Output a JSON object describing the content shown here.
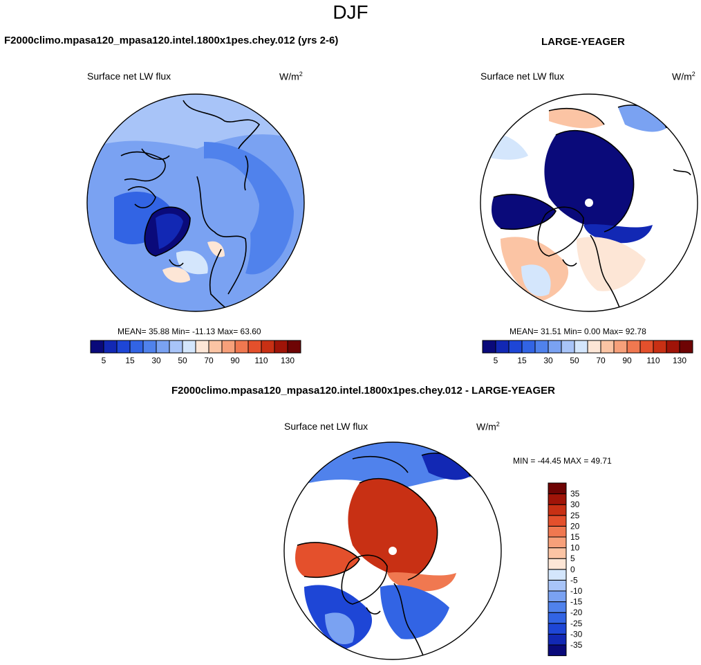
{
  "figure_title": "DJF",
  "panels": [
    {
      "title": "F2000climo.mpasa120_mpasa120.intel.1800x1pes.chey.012 (yrs 2-6)",
      "left_label": "Surface net LW flux",
      "units_base": "W/m",
      "units_exp": "2",
      "stats_text": "MEAN=  35.88  Min= -11.13  Max=  63.60"
    },
    {
      "title": "LARGE-YEAGER",
      "left_label": "Surface net LW flux",
      "units_base": "W/m",
      "units_exp": "2",
      "stats_text": "MEAN=  31.51  Min=   0.00  Max=  92.78"
    },
    {
      "title": "F2000climo.mpasa120_mpasa120.intel.1800x1pes.chey.012 - LARGE-YEAGER",
      "left_label": "Surface net LW flux",
      "units_base": "W/m",
      "units_exp": "2",
      "stats_text": "MIN = -44.45 MAX =  49.71"
    }
  ],
  "chart_data": [
    {
      "type": "heatmap",
      "projection": "north polar stereographic",
      "variable": "Surface net LW flux",
      "units": "W/m2",
      "mean": 35.88,
      "min": -11.13,
      "max": 63.6,
      "colorbar": {
        "orientation": "horizontal",
        "colors": [
          "#0a0a7a",
          "#1228b4",
          "#1e46d6",
          "#3264e4",
          "#5082ec",
          "#7aa2f2",
          "#a8c4f8",
          "#d4e6fc",
          "#fde6d6",
          "#fbc4a4",
          "#f7a07a",
          "#f07850",
          "#e4502c",
          "#c83014",
          "#a01408",
          "#6e0404"
        ],
        "tick_labels": [
          "5",
          "15",
          "30",
          "50",
          "70",
          "90",
          "110",
          "130"
        ],
        "tick_boundary_index": [
          1,
          3,
          5,
          7,
          9,
          11,
          13,
          15
        ]
      }
    },
    {
      "type": "heatmap",
      "projection": "north polar stereographic",
      "variable": "Surface net LW flux",
      "units": "W/m2",
      "mean": 31.51,
      "min": 0.0,
      "max": 92.78,
      "colorbar": {
        "orientation": "horizontal",
        "colors": [
          "#0a0a7a",
          "#1228b4",
          "#1e46d6",
          "#3264e4",
          "#5082ec",
          "#7aa2f2",
          "#a8c4f8",
          "#d4e6fc",
          "#fde6d6",
          "#fbc4a4",
          "#f7a07a",
          "#f07850",
          "#e4502c",
          "#c83014",
          "#a01408",
          "#6e0404"
        ],
        "tick_labels": [
          "5",
          "15",
          "30",
          "50",
          "70",
          "90",
          "110",
          "130"
        ],
        "tick_boundary_index": [
          1,
          3,
          5,
          7,
          9,
          11,
          13,
          15
        ]
      }
    },
    {
      "type": "heatmap",
      "projection": "north polar stereographic",
      "variable": "Surface net LW flux (difference)",
      "units": "W/m2",
      "min": -44.45,
      "max": 49.71,
      "colorbar": {
        "orientation": "vertical",
        "colors": [
          "#0a0a7a",
          "#1228b4",
          "#1e46d6",
          "#3264e4",
          "#5082ec",
          "#7aa2f2",
          "#a8c4f8",
          "#d4e6fc",
          "#fde6d6",
          "#fbc4a4",
          "#f7a07a",
          "#f07850",
          "#e4502c",
          "#c83014",
          "#a01408",
          "#6e0404"
        ],
        "tick_labels": [
          "-35",
          "-30",
          "-25",
          "-20",
          "-15",
          "-10",
          "-5",
          "0",
          "5",
          "10",
          "15",
          "20",
          "25",
          "30",
          "35"
        ]
      }
    }
  ],
  "colors": {
    "land": "#ffffff",
    "coastline": "#000000",
    "pole_marker": "#ffffff"
  }
}
